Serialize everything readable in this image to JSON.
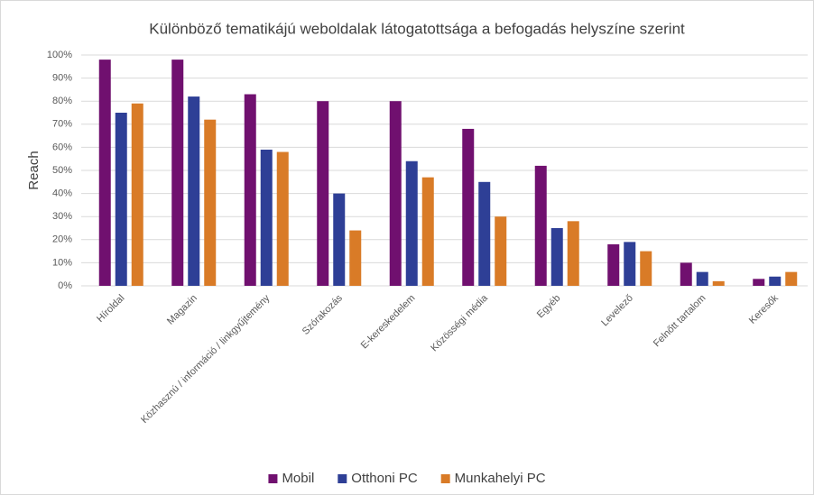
{
  "chart_data": {
    "type": "bar",
    "title": "Különböző tematikájú weboldalak látogatottsága a befogadás helyszíne szerint",
    "y_label": "Reach",
    "categories": [
      "Híroldal",
      "Magazin",
      "Közhasznú / információ / linkgyűjtemény",
      "Szórakozás",
      "E-kereskedelem",
      "Közösségi média",
      "Egyéb",
      "Levelező",
      "Felnőtt tartalom",
      "Keresők"
    ],
    "series": [
      {
        "name": "Mobil",
        "color": "#70106f",
        "values": [
          98,
          98,
          83,
          80,
          80,
          68,
          52,
          18,
          10,
          3
        ]
      },
      {
        "name": "Otthoni PC",
        "color": "#2e3f96",
        "values": [
          75,
          82,
          59,
          40,
          54,
          45,
          25,
          19,
          6,
          4
        ]
      },
      {
        "name": "Munkahelyi PC",
        "color": "#d97b27",
        "values": [
          79,
          72,
          58,
          24,
          47,
          30,
          28,
          15,
          2,
          6
        ]
      }
    ],
    "ylim": [
      0,
      100
    ],
    "yticks": [
      {
        "value": 0,
        "label": "0%"
      },
      {
        "value": 10,
        "label": "10%"
      },
      {
        "value": 20,
        "label": "20%"
      },
      {
        "value": 30,
        "label": "30%"
      },
      {
        "value": 40,
        "label": "40%"
      },
      {
        "value": 50,
        "label": "50%"
      },
      {
        "value": 60,
        "label": "60%"
      },
      {
        "value": 70,
        "label": "70%"
      },
      {
        "value": 80,
        "label": "80%"
      },
      {
        "value": 90,
        "label": "90%"
      },
      {
        "value": 100,
        "label": "100%"
      }
    ],
    "grid": true,
    "legend": "bottom"
  }
}
